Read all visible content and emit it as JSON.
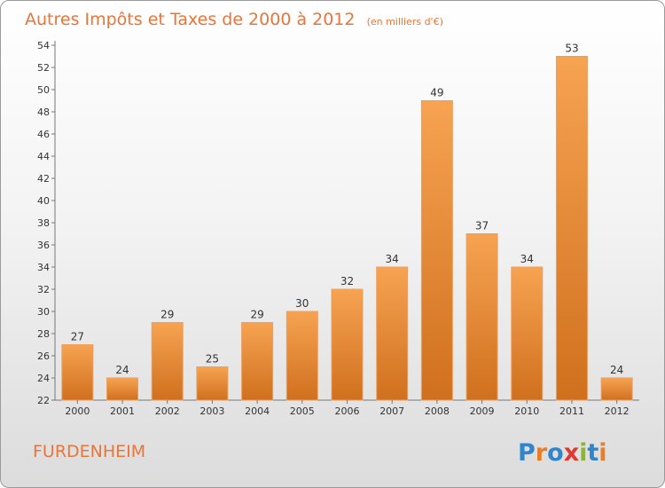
{
  "title": "Autres Impôts et Taxes de 2000 à 2012",
  "subtitle": "(en milliers d'€)",
  "city": "FURDENHEIM",
  "logo_text": "Proxiti",
  "colors": {
    "bar_top": "#f6a352",
    "bar_bottom": "#d0701e",
    "accent": "#e8753a",
    "logo": [
      "#2f86cc",
      "#e87d2a",
      "#2f86cc",
      "#e2372f",
      "#8ab82a",
      "#2f86cc",
      "#e87d2a"
    ]
  },
  "chart_data": {
    "type": "bar",
    "categories": [
      "2000",
      "2001",
      "2002",
      "2003",
      "2004",
      "2005",
      "2006",
      "2007",
      "2008",
      "2009",
      "2010",
      "2011",
      "2012"
    ],
    "values": [
      27,
      24,
      29,
      25,
      29,
      30,
      32,
      34,
      49,
      37,
      34,
      53,
      24
    ],
    "ylim": [
      22,
      54
    ],
    "yticks": [
      22,
      24,
      26,
      28,
      30,
      32,
      34,
      36,
      38,
      40,
      42,
      44,
      46,
      48,
      50,
      52,
      54
    ],
    "grid": false,
    "legend": "none",
    "xlabel": "",
    "ylabel": ""
  }
}
